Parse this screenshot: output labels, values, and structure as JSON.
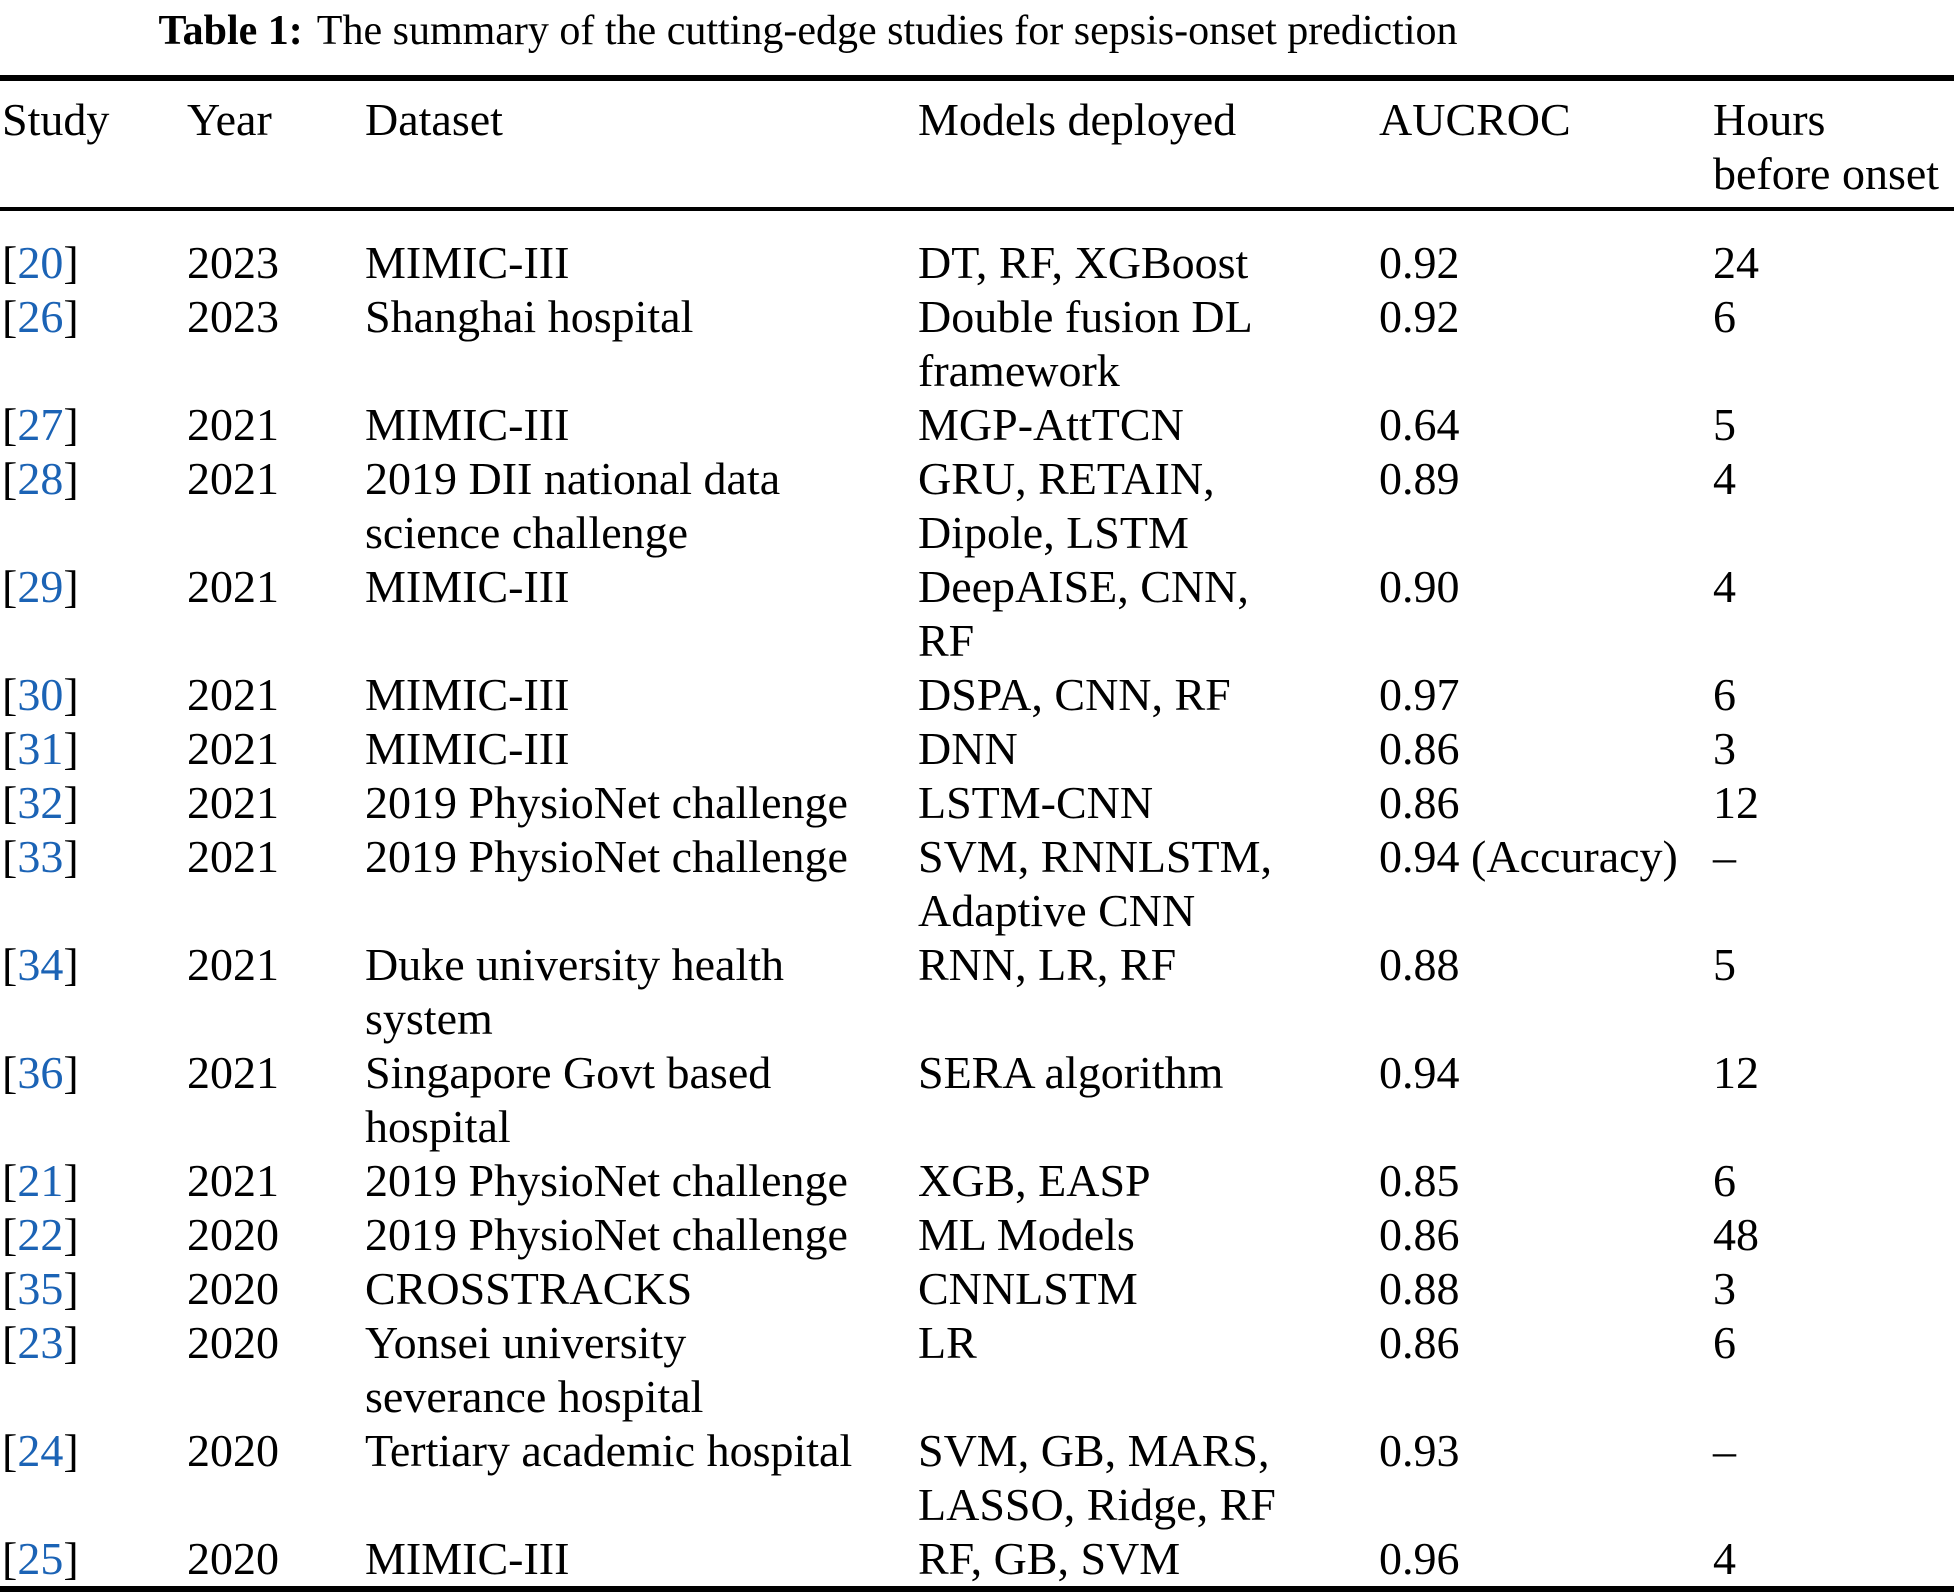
{
  "title": {
    "label": "Table 1:",
    "text": "The summary of the cutting-edge studies for sepsis-onset prediction"
  },
  "colors": {
    "citation_blue": "#1B63B5",
    "text_black": "#000000"
  },
  "citation_brackets": {
    "open": "[",
    "close": "]"
  },
  "table": {
    "headers": [
      {
        "key": "study",
        "label": "Study"
      },
      {
        "key": "year",
        "label": "Year"
      },
      {
        "key": "dataset",
        "label": "Dataset"
      },
      {
        "key": "models",
        "label": "Models deployed"
      },
      {
        "key": "aucroc",
        "label": "AUCROC"
      },
      {
        "key": "hours",
        "label": "Hours\nbefore onset"
      }
    ],
    "rows": [
      {
        "ref": "20",
        "year": "2023",
        "dataset": "MIMIC-III",
        "models": "DT, RF, XGBoost",
        "aucroc": "0.92",
        "hours": "24"
      },
      {
        "ref": "26",
        "year": "2023",
        "dataset": "Shanghai hospital",
        "models": "Double fusion DL\nframework",
        "aucroc": "0.92",
        "hours": "6"
      },
      {
        "ref": "27",
        "year": "2021",
        "dataset": "MIMIC-III",
        "models": "MGP-AttTCN",
        "aucroc": "0.64",
        "hours": "5"
      },
      {
        "ref": "28",
        "year": "2021",
        "dataset": "2019 DII national data\nscience challenge",
        "models": "GRU, RETAIN,\nDipole, LSTM",
        "aucroc": "0.89",
        "hours": "4"
      },
      {
        "ref": "29",
        "year": "2021",
        "dataset": "MIMIC-III",
        "models": "DeepAISE, CNN,\nRF",
        "aucroc": "0.90",
        "hours": "4"
      },
      {
        "ref": "30",
        "year": "2021",
        "dataset": "MIMIC-III",
        "models": "DSPA, CNN, RF",
        "aucroc": "0.97",
        "hours": "6"
      },
      {
        "ref": "31",
        "year": "2021",
        "dataset": "MIMIC-III",
        "models": "DNN",
        "aucroc": "0.86",
        "hours": "3"
      },
      {
        "ref": "32",
        "year": "2021",
        "dataset": "2019 PhysioNet challenge",
        "models": "LSTM-CNN",
        "aucroc": "0.86",
        "hours": "12"
      },
      {
        "ref": "33",
        "year": "2021",
        "dataset": "2019 PhysioNet challenge",
        "models": "SVM, RNNLSTM,\nAdaptive CNN",
        "aucroc": "0.94 (Accuracy)",
        "hours": "–"
      },
      {
        "ref": "34",
        "year": "2021",
        "dataset": "Duke university health\nsystem",
        "models": "RNN, LR, RF",
        "aucroc": "0.88",
        "hours": "5"
      },
      {
        "ref": "36",
        "year": "2021",
        "dataset": "Singapore Govt based\nhospital",
        "models": "SERA algorithm",
        "aucroc": "0.94",
        "hours": "12"
      },
      {
        "ref": "21",
        "year": "2021",
        "dataset": "2019 PhysioNet challenge",
        "models": "XGB, EASP",
        "aucroc": "0.85",
        "hours": "6"
      },
      {
        "ref": "22",
        "year": "2020",
        "dataset": "2019 PhysioNet challenge",
        "models": "ML Models",
        "aucroc": "0.86",
        "hours": "48"
      },
      {
        "ref": "35",
        "year": "2020",
        "dataset": "CROSSTRACKS",
        "models": "CNNLSTM",
        "aucroc": "0.88",
        "hours": "3"
      },
      {
        "ref": "23",
        "year": "2020",
        "dataset": "Yonsei university\nseverance hospital",
        "models": "LR",
        "aucroc": "0.86",
        "hours": "6"
      },
      {
        "ref": "24",
        "year": "2020",
        "dataset": "Tertiary academic hospital",
        "models": "SVM, GB, MARS,\nLASSO, Ridge, RF",
        "aucroc": "0.93",
        "hours": "–"
      },
      {
        "ref": "25",
        "year": "2020",
        "dataset": "MIMIC-III",
        "models": "RF, GB, SVM",
        "aucroc": "0.96",
        "hours": "4"
      }
    ]
  }
}
